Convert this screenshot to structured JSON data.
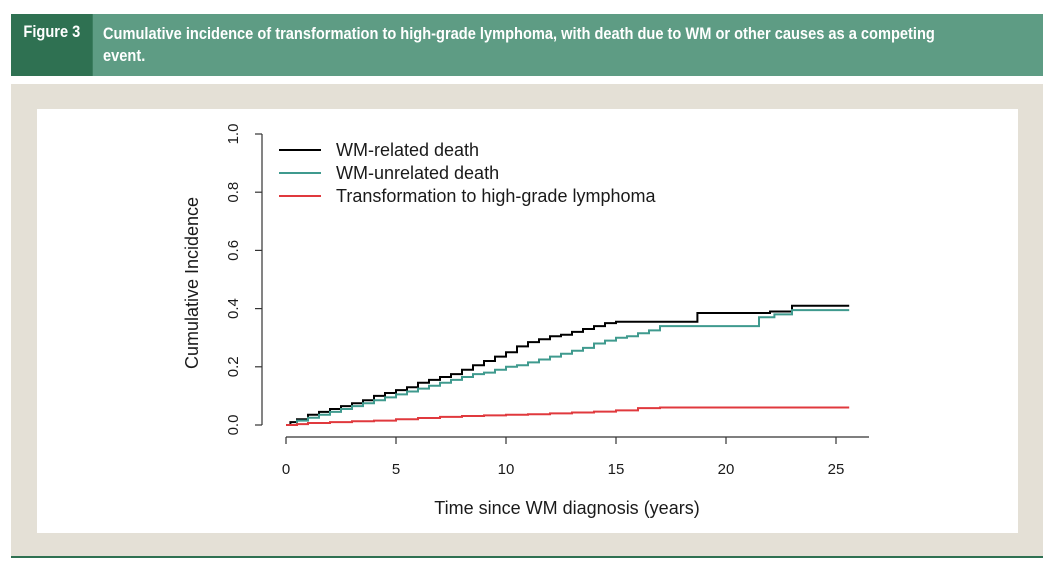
{
  "figure": {
    "label": "Figure 3",
    "title_line1": "Cumulative incidence of transformation to high-grade lymphoma, with death due to WM or other causes as a competing",
    "title_line2": "event."
  },
  "colors": {
    "header_bg": "#5e9c84",
    "label_bg": "#2f7152",
    "panel_bg": "#e4e0d6",
    "wm_related": "#000000",
    "wm_unrelated": "#3f9a8e",
    "transformation": "#e0393d"
  },
  "chart_data": {
    "type": "line",
    "title": "",
    "xlabel": "Time since WM diagnosis (years)",
    "ylabel": "Cumulative Incidence",
    "xlim": [
      0,
      26
    ],
    "ylim": [
      0,
      1.0
    ],
    "x_ticks": [
      "0",
      "5",
      "10",
      "15",
      "20",
      "25"
    ],
    "y_ticks": [
      "0.0",
      "0.2",
      "0.4",
      "0.6",
      "0.8",
      "1.0"
    ],
    "grid": false,
    "legend_position": "top-left",
    "step": true,
    "series": [
      {
        "name": "WM-related death",
        "color": "#000000",
        "x": [
          0,
          0.2,
          0.5,
          1,
          1.5,
          2,
          2.5,
          3,
          3.5,
          4,
          4.5,
          5,
          5.5,
          6,
          6.5,
          7,
          7.5,
          8,
          8.5,
          9,
          9.5,
          10,
          10.5,
          11,
          11.5,
          12,
          12.5,
          13,
          13.5,
          14,
          14.5,
          15,
          16,
          17,
          18,
          18.7,
          20,
          22,
          23,
          25.6
        ],
        "y": [
          0,
          0.01,
          0.02,
          0.035,
          0.045,
          0.055,
          0.065,
          0.075,
          0.085,
          0.1,
          0.11,
          0.12,
          0.13,
          0.145,
          0.155,
          0.165,
          0.175,
          0.19,
          0.205,
          0.22,
          0.235,
          0.25,
          0.27,
          0.285,
          0.295,
          0.305,
          0.31,
          0.32,
          0.33,
          0.34,
          0.35,
          0.355,
          0.355,
          0.355,
          0.355,
          0.385,
          0.385,
          0.39,
          0.41,
          0.41
        ]
      },
      {
        "name": "WM-unrelated death",
        "color": "#3f9a8e",
        "x": [
          0,
          0.5,
          1,
          1.5,
          2,
          2.5,
          3,
          3.5,
          4,
          4.5,
          5,
          5.5,
          6,
          6.5,
          7,
          7.5,
          8,
          8.5,
          9,
          9.5,
          10,
          10.5,
          11,
          11.5,
          12,
          12.5,
          13,
          13.5,
          14,
          14.5,
          15,
          15.5,
          16,
          16.5,
          17,
          18,
          20,
          21.5,
          22.2,
          23,
          25.6
        ],
        "y": [
          0,
          0.015,
          0.025,
          0.035,
          0.045,
          0.055,
          0.065,
          0.075,
          0.085,
          0.095,
          0.105,
          0.115,
          0.125,
          0.135,
          0.145,
          0.155,
          0.165,
          0.175,
          0.18,
          0.19,
          0.2,
          0.205,
          0.215,
          0.225,
          0.235,
          0.245,
          0.255,
          0.265,
          0.28,
          0.29,
          0.3,
          0.305,
          0.315,
          0.325,
          0.34,
          0.34,
          0.34,
          0.37,
          0.38,
          0.395,
          0.395
        ]
      },
      {
        "name": "Transformation to high-grade lymphoma",
        "color": "#e0393d",
        "x": [
          0,
          0.5,
          1,
          2,
          3,
          4,
          5,
          6,
          7,
          8,
          9,
          10,
          11,
          12,
          13,
          14,
          15,
          16,
          17,
          20,
          25.6
        ],
        "y": [
          0,
          0.003,
          0.007,
          0.01,
          0.013,
          0.015,
          0.02,
          0.024,
          0.028,
          0.031,
          0.033,
          0.035,
          0.037,
          0.04,
          0.043,
          0.046,
          0.05,
          0.058,
          0.06,
          0.06,
          0.06
        ]
      }
    ]
  }
}
